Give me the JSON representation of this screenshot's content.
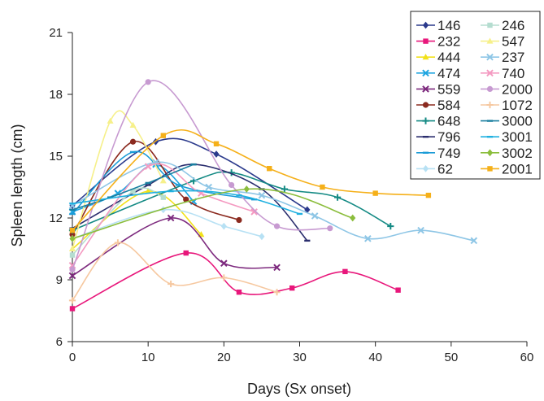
{
  "chart_data": {
    "type": "line",
    "title": "",
    "xlabel": "Days (Sx onset)",
    "ylabel": "Spleen length (cm)",
    "xlim": [
      0,
      60
    ],
    "ylim": [
      6,
      21
    ],
    "xticks": [
      0,
      10,
      20,
      30,
      40,
      50,
      60
    ],
    "yticks": [
      6,
      9,
      12,
      15,
      18,
      21
    ],
    "grid": false,
    "legend_position": "top-right",
    "series": [
      {
        "name": "146",
        "color": "#2b3a8c",
        "marker": "diamond",
        "x": [
          0,
          11,
          19,
          31
        ],
        "y": [
          12.6,
          15.7,
          15.1,
          12.4
        ]
      },
      {
        "name": "232",
        "color": "#e8177b",
        "marker": "square",
        "x": [
          0,
          15,
          22,
          29,
          36,
          43
        ],
        "y": [
          7.6,
          10.3,
          8.4,
          8.6,
          9.4,
          8.5
        ]
      },
      {
        "name": "444",
        "color": "#f2e11a",
        "marker": "triangle",
        "x": [
          0,
          10,
          17
        ],
        "y": [
          10.5,
          13.3,
          11.2
        ]
      },
      {
        "name": "474",
        "color": "#1ea5e0",
        "marker": "x",
        "x": [
          0,
          6,
          11,
          16
        ],
        "y": [
          12.3,
          13.2,
          14.6,
          12.8
        ]
      },
      {
        "name": "559",
        "color": "#7d2a7e",
        "marker": "x",
        "x": [
          0,
          13,
          20,
          27
        ],
        "y": [
          9.2,
          12.0,
          9.8,
          9.6
        ]
      },
      {
        "name": "584",
        "color": "#8b2a1f",
        "marker": "circle",
        "x": [
          0,
          8,
          15,
          22
        ],
        "y": [
          11.2,
          15.7,
          12.9,
          11.9
        ]
      },
      {
        "name": "648",
        "color": "#148a84",
        "marker": "plus",
        "x": [
          0,
          16,
          21,
          28,
          35,
          42
        ],
        "y": [
          11.4,
          13.8,
          14.2,
          13.4,
          13.0,
          11.6
        ]
      },
      {
        "name": "796",
        "color": "#2b2e6e",
        "marker": "dash",
        "x": [
          0,
          10,
          16,
          25,
          31
        ],
        "y": [
          11.5,
          13.6,
          14.6,
          13.4,
          10.9
        ]
      },
      {
        "name": "749",
        "color": "#1a9bd7",
        "marker": "dash",
        "x": [
          0,
          8,
          14,
          24
        ],
        "y": [
          12.2,
          15.2,
          13.6,
          12.9
        ]
      },
      {
        "name": "62",
        "color": "#b7e1f4",
        "marker": "diamond",
        "x": [
          0,
          12,
          20,
          25
        ],
        "y": [
          11.0,
          12.4,
          11.6,
          11.1
        ]
      },
      {
        "name": "246",
        "color": "#b5ddd0",
        "marker": "square",
        "x": [
          0,
          8,
          12
        ],
        "y": [
          10.2,
          13.3,
          13.0
        ]
      },
      {
        "name": "547",
        "color": "#f6f08a",
        "marker": "triangle",
        "x": [
          0,
          5,
          8,
          12
        ],
        "y": [
          10.5,
          16.7,
          16.5,
          13.8
        ]
      },
      {
        "name": "237",
        "color": "#8ec6e6",
        "marker": "x",
        "x": [
          0,
          11,
          18,
          25,
          32,
          39,
          46,
          53
        ],
        "y": [
          12.6,
          14.7,
          13.5,
          13.1,
          12.1,
          11.0,
          11.4,
          10.9
        ]
      },
      {
        "name": "740",
        "color": "#f49ac1",
        "marker": "x",
        "x": [
          0,
          10,
          17,
          24
        ],
        "y": [
          9.7,
          14.5,
          13.2,
          12.3
        ]
      },
      {
        "name": "2000",
        "color": "#c79ad1",
        "marker": "circle",
        "x": [
          0,
          10,
          21,
          27,
          34
        ],
        "y": [
          9.5,
          18.6,
          13.6,
          11.6,
          11.5
        ]
      },
      {
        "name": "1072",
        "color": "#f6c8a0",
        "marker": "plus",
        "x": [
          0,
          6,
          13,
          20,
          27
        ],
        "y": [
          8.0,
          10.8,
          8.8,
          9.1,
          8.4
        ]
      },
      {
        "name": "3000",
        "color": "#1a7fa0",
        "marker": "dash",
        "x": [
          0,
          5,
          10,
          16
        ],
        "y": [
          12.4,
          13.0,
          13.7,
          14.6
        ]
      },
      {
        "name": "3001",
        "color": "#1fb0e0",
        "marker": "dash",
        "x": [
          0,
          13,
          22,
          30
        ],
        "y": [
          12.7,
          13.3,
          13.1,
          12.2
        ]
      },
      {
        "name": "3002",
        "color": "#8bbd3c",
        "marker": "diamond",
        "x": [
          0,
          23,
          37
        ],
        "y": [
          11.0,
          13.4,
          12.0
        ]
      },
      {
        "name": "2001",
        "color": "#f5b01a",
        "marker": "square",
        "x": [
          0,
          12,
          19,
          26,
          33,
          40,
          47
        ],
        "y": [
          11.4,
          16.0,
          15.6,
          14.4,
          13.5,
          13.2,
          13.1
        ]
      }
    ]
  }
}
